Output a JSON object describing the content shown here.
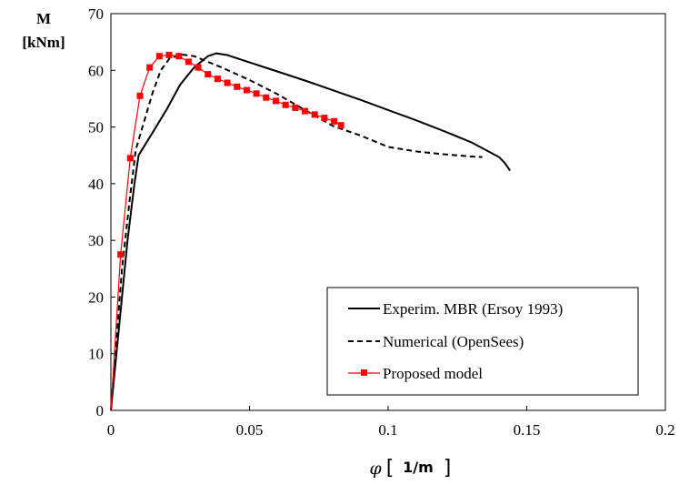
{
  "chart_data": {
    "type": "line",
    "ylabel_line1": "M",
    "ylabel_line2": "[kNm]",
    "xlabel_symbol": "φ",
    "xlabel_unit": "1/m",
    "xlim": [
      0,
      0.2
    ],
    "ylim": [
      0,
      70
    ],
    "x_ticks": [
      0,
      0.05,
      0.1,
      0.15,
      0.2
    ],
    "x_tick_labels": [
      "0",
      "0.05",
      "0.1",
      "0.15",
      "0.2"
    ],
    "y_ticks": [
      0,
      10,
      20,
      30,
      40,
      50,
      60,
      70
    ],
    "y_tick_labels": [
      "0",
      "10",
      "20",
      "30",
      "40",
      "50",
      "60",
      "70"
    ],
    "grid": false,
    "legend_position": "bottom-right",
    "series": [
      {
        "name": "Experim. MBR (Ersoy 1993)",
        "style": "solid",
        "color": "#000000",
        "marker": "none",
        "x": [
          0,
          0.006,
          0.0085,
          0.01,
          0.015,
          0.02,
          0.025,
          0.03,
          0.035,
          0.038,
          0.042,
          0.05,
          0.06,
          0.07,
          0.08,
          0.09,
          0.1,
          0.11,
          0.12,
          0.13,
          0.14,
          0.142,
          0.144
        ],
        "y": [
          0,
          30,
          40,
          45,
          49,
          53,
          57.5,
          60.5,
          62.5,
          63,
          62.7,
          61.4,
          59.8,
          58.2,
          56.5,
          54.8,
          53,
          51.2,
          49.3,
          47.3,
          44.7,
          43.7,
          42.3
        ]
      },
      {
        "name": "Numerical (OpenSees)",
        "style": "dashed",
        "color": "#000000",
        "marker": "none",
        "x": [
          0,
          0.004,
          0.007,
          0.009,
          0.012,
          0.015,
          0.018,
          0.021,
          0.025,
          0.03,
          0.04,
          0.05,
          0.06,
          0.07,
          0.08,
          0.09,
          0.1,
          0.11,
          0.12,
          0.13,
          0.134
        ],
        "y": [
          0,
          25,
          38,
          46,
          51,
          56,
          60,
          62,
          62.8,
          62.5,
          60.5,
          58.3,
          55.8,
          53,
          50.2,
          48.5,
          46.5,
          45.7,
          45.2,
          44.8,
          44.7
        ]
      },
      {
        "name": "Proposed model",
        "style": "solid",
        "color": "#ff0000",
        "marker": "square",
        "x": [
          0,
          0.0035,
          0.007,
          0.0105,
          0.014,
          0.0175,
          0.021,
          0.0245,
          0.028,
          0.0315,
          0.035,
          0.0385,
          0.042,
          0.0455,
          0.049,
          0.0525,
          0.056,
          0.0595,
          0.063,
          0.0665,
          0.07,
          0.0735,
          0.077,
          0.0805,
          0.083
        ],
        "y": [
          0,
          27.5,
          44.5,
          55.5,
          60.5,
          62.5,
          62.7,
          62.5,
          61.5,
          60.5,
          59.3,
          58.5,
          57.8,
          57.1,
          56.5,
          55.9,
          55.2,
          54.6,
          53.9,
          53.4,
          52.8,
          52.2,
          51.6,
          51,
          50.3
        ]
      }
    ]
  }
}
